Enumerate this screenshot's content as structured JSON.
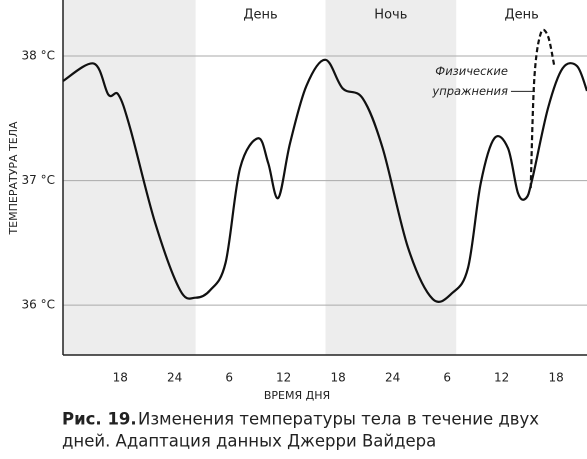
{
  "chart_data": {
    "type": "line",
    "y_label": "ТЕМПЕРАТУРА ТЕЛА",
    "x_label": "ВРЕМЯ ДНЯ",
    "xlim": [
      11.7,
      69.4
    ],
    "ylim": [
      35.6,
      38.45
    ],
    "xticks": [
      18,
      24,
      {
        "value": 30,
        "label": "6"
      },
      {
        "value": 36,
        "label": "12"
      },
      {
        "value": 42,
        "label": "18"
      },
      {
        "value": 48,
        "label": "24"
      },
      {
        "value": 54,
        "label": "6"
      },
      {
        "value": 60,
        "label": "12"
      },
      {
        "value": 66,
        "label": "18"
      }
    ],
    "yticks": [
      {
        "value": 36,
        "label": "36 °C"
      },
      {
        "value": 37,
        "label": "37 °C"
      },
      {
        "value": 38,
        "label": "38 °C"
      }
    ],
    "grid": true,
    "periods": [
      {
        "x0": 11.7,
        "x1": 26.3,
        "shaded": true
      },
      {
        "label": "День",
        "x0": 26.3,
        "x1": 40.6,
        "shaded": false
      },
      {
        "label": "Ночь",
        "x0": 40.6,
        "x1": 55,
        "shaded": true
      },
      {
        "label": "День",
        "x0": 55,
        "x1": 69.4,
        "shaded": false
      }
    ],
    "series": [
      {
        "color": "#111111",
        "style": "solid",
        "x": [
          11.7,
          15.1,
          16.7,
          17.8,
          19.1,
          21.85,
          24.6,
          26.3,
          27.9,
          29.6,
          31.2,
          33.2,
          34.3,
          35.4,
          36.7,
          38.5,
          40.6,
          42.5,
          44.7,
          46.9,
          49.7,
          52.4,
          54.6,
          56.3,
          57.7,
          59.2,
          60.7,
          61.8,
          62.7,
          63.4,
          65.1,
          66.7,
          68.3,
          69.4
        ],
        "values": [
          37.8,
          37.94,
          37.69,
          37.69,
          37.42,
          36.66,
          36.12,
          36.06,
          36.12,
          36.34,
          37.1,
          37.34,
          37.14,
          36.86,
          37.3,
          37.76,
          37.97,
          37.74,
          37.66,
          37.26,
          36.46,
          36.05,
          36.1,
          36.3,
          36.98,
          37.34,
          37.26,
          36.9,
          36.86,
          37.02,
          37.58,
          37.9,
          37.92,
          37.72
        ]
      },
      {
        "color": "#111111",
        "style": "dashed",
        "x": [
          63.2,
          63.6,
          64.3,
          65.1,
          65.8
        ],
        "values": [
          36.94,
          37.82,
          38.18,
          38.16,
          37.92
        ]
      }
    ],
    "annotation": {
      "lines": [
        "Физические",
        "упражнения"
      ],
      "x": 64,
      "y": 37.7
    }
  },
  "caption": {
    "label": "Рис. 19.",
    "lines": [
      "Изменения температуры тела в течение двух",
      "дней. Адаптация данных Джерри Вайдера"
    ]
  }
}
